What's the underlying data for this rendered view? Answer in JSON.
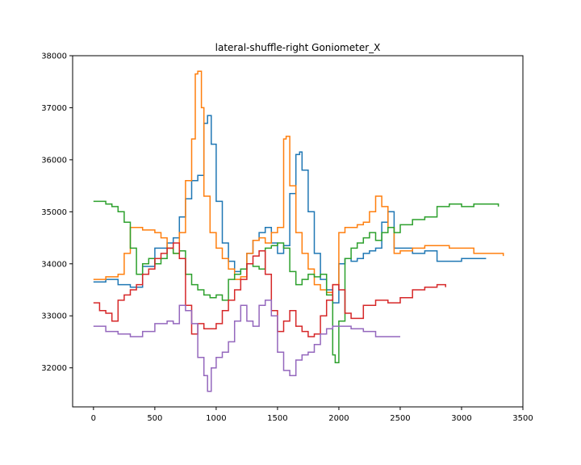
{
  "chart_data": {
    "type": "line",
    "title": "lateral-shuffle-right Goniometer_X",
    "xlabel": "",
    "ylabel": "",
    "xlim": [
      -170,
      3500
    ],
    "ylim": [
      31250,
      38000
    ],
    "xticks": [
      0,
      500,
      1000,
      1500,
      2000,
      2500,
      3000,
      3500
    ],
    "xtick_labels": [
      "0",
      "500",
      "1000",
      "1500",
      "2000",
      "2500",
      "3000",
      "3500"
    ],
    "yticks": [
      32000,
      33000,
      34000,
      35000,
      36000,
      37000,
      38000
    ],
    "ytick_labels": [
      "32000",
      "33000",
      "34000",
      "35000",
      "36000",
      "37000",
      "38000"
    ],
    "grid": false,
    "legend": "none",
    "step": true,
    "series": [
      {
        "color": "#1f77b4",
        "x": [
          0,
          100,
          200,
          300,
          400,
          500,
          600,
          650,
          700,
          750,
          800,
          850,
          900,
          930,
          960,
          1000,
          1050,
          1100,
          1150,
          1200,
          1250,
          1300,
          1350,
          1400,
          1450,
          1500,
          1550,
          1600,
          1650,
          1680,
          1700,
          1750,
          1800,
          1850,
          1900,
          1950,
          2000,
          2050,
          2100,
          2150,
          2200,
          2250,
          2300,
          2350,
          2400,
          2450,
          2500,
          2600,
          2700,
          2800,
          2900,
          3000,
          3100,
          3200
        ],
        "values": [
          33650,
          33700,
          33600,
          33550,
          33950,
          34300,
          34400,
          34500,
          34900,
          35250,
          35600,
          35700,
          36700,
          36850,
          36300,
          35200,
          34400,
          34050,
          33850,
          33900,
          34200,
          34450,
          34600,
          34700,
          34400,
          34200,
          34350,
          35350,
          36100,
          36150,
          35800,
          35000,
          34200,
          33700,
          33500,
          33250,
          34000,
          34100,
          34050,
          34100,
          34200,
          34250,
          34300,
          34800,
          35000,
          34300,
          34300,
          34200,
          34250,
          34050,
          34050,
          34100,
          34100,
          34100
        ]
      },
      {
        "color": "#ff7f0e",
        "x": [
          0,
          100,
          200,
          250,
          300,
          400,
          500,
          550,
          600,
          650,
          700,
          750,
          800,
          830,
          850,
          880,
          900,
          950,
          1000,
          1050,
          1100,
          1150,
          1200,
          1250,
          1300,
          1350,
          1400,
          1450,
          1500,
          1550,
          1570,
          1600,
          1650,
          1700,
          1750,
          1800,
          1850,
          1900,
          1950,
          2000,
          2050,
          2100,
          2150,
          2200,
          2250,
          2300,
          2350,
          2400,
          2450,
          2500,
          2600,
          2700,
          2800,
          2900,
          3000,
          3100,
          3200,
          3300,
          3340
        ],
        "values": [
          33700,
          33750,
          33800,
          34200,
          34700,
          34650,
          34600,
          34500,
          34300,
          34200,
          34600,
          35600,
          36400,
          37650,
          37700,
          37000,
          35300,
          34600,
          34300,
          34100,
          33900,
          33700,
          33750,
          34200,
          34450,
          34500,
          34400,
          34600,
          34700,
          36400,
          36450,
          35500,
          34600,
          34200,
          33900,
          33600,
          33500,
          33450,
          33600,
          34600,
          34700,
          34700,
          34750,
          34800,
          35000,
          35300,
          35100,
          34700,
          34200,
          34250,
          34300,
          34350,
          34350,
          34300,
          34300,
          34200,
          34200,
          34200,
          34150
        ]
      },
      {
        "color": "#2ca02c",
        "x": [
          0,
          100,
          150,
          200,
          250,
          300,
          350,
          400,
          450,
          500,
          550,
          600,
          650,
          700,
          750,
          800,
          850,
          900,
          950,
          1000,
          1050,
          1100,
          1150,
          1200,
          1250,
          1300,
          1350,
          1400,
          1450,
          1500,
          1550,
          1600,
          1650,
          1700,
          1750,
          1800,
          1850,
          1900,
          1950,
          1970,
          2000,
          2050,
          2100,
          2150,
          2200,
          2250,
          2300,
          2350,
          2400,
          2450,
          2500,
          2600,
          2700,
          2800,
          2900,
          3000,
          3100,
          3200,
          3300
        ],
        "values": [
          35200,
          35150,
          35100,
          35000,
          34800,
          34300,
          33800,
          34000,
          34100,
          34000,
          34100,
          34300,
          34200,
          34250,
          33800,
          33600,
          33500,
          33400,
          33350,
          33400,
          33300,
          33700,
          33800,
          33900,
          34000,
          33950,
          33900,
          34300,
          34350,
          34400,
          34300,
          33850,
          33600,
          33700,
          33800,
          33750,
          33800,
          33400,
          32250,
          32100,
          32900,
          34100,
          34300,
          34400,
          34500,
          34600,
          34450,
          34600,
          34700,
          34600,
          34750,
          34850,
          34900,
          35100,
          35150,
          35100,
          35150,
          35150,
          35100
        ]
      },
      {
        "color": "#d62728",
        "x": [
          0,
          50,
          100,
          150,
          200,
          250,
          300,
          350,
          400,
          450,
          500,
          550,
          600,
          650,
          700,
          750,
          800,
          850,
          900,
          950,
          1000,
          1050,
          1100,
          1150,
          1200,
          1250,
          1300,
          1350,
          1400,
          1450,
          1500,
          1550,
          1600,
          1650,
          1700,
          1750,
          1800,
          1850,
          1900,
          1950,
          2000,
          2050,
          2100,
          2200,
          2300,
          2400,
          2500,
          2600,
          2700,
          2800,
          2870
        ],
        "values": [
          33250,
          33100,
          33050,
          32900,
          33300,
          33400,
          33500,
          33600,
          33800,
          33900,
          34100,
          34200,
          34300,
          34400,
          34100,
          33200,
          32650,
          32850,
          32750,
          32750,
          32850,
          33100,
          33300,
          33500,
          33700,
          34000,
          34150,
          34250,
          33800,
          33100,
          32700,
          32900,
          33100,
          32800,
          32700,
          32600,
          32650,
          33000,
          33300,
          33600,
          33500,
          33050,
          32950,
          33200,
          33300,
          33250,
          33350,
          33500,
          33550,
          33600,
          33550
        ]
      },
      {
        "color": "#9467bd",
        "x": [
          0,
          100,
          200,
          300,
          400,
          500,
          600,
          650,
          700,
          750,
          800,
          850,
          900,
          930,
          960,
          1000,
          1050,
          1100,
          1150,
          1200,
          1250,
          1300,
          1350,
          1400,
          1450,
          1500,
          1550,
          1600,
          1650,
          1700,
          1750,
          1800,
          1850,
          1900,
          1950,
          2000,
          2100,
          2200,
          2300,
          2400,
          2500
        ],
        "values": [
          32800,
          32700,
          32650,
          32600,
          32700,
          32850,
          32900,
          32850,
          33200,
          33100,
          32850,
          32200,
          31850,
          31550,
          32000,
          32200,
          32300,
          32500,
          32900,
          33200,
          32900,
          32800,
          33200,
          33300,
          33000,
          32300,
          31950,
          31850,
          32150,
          32250,
          32300,
          32450,
          32650,
          32750,
          32800,
          32800,
          32750,
          32700,
          32600,
          32600,
          32600
        ]
      }
    ]
  }
}
